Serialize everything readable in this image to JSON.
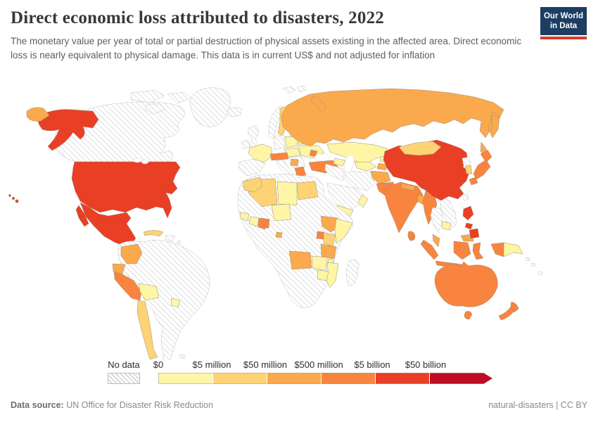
{
  "header": {
    "title": "Direct economic loss attributed to disasters, 2022",
    "subtitle": "The monetary value per year of total or partial destruction of physical assets existing in the affected area. Direct economic loss is nearly equivalent to physical damage. This data is in current US$ and not adjusted for inflation",
    "logo": {
      "line1": "Our World",
      "line2": "in Data",
      "bg": "#1d3d63",
      "accent": "#d93a24"
    }
  },
  "legend": {
    "no_data_label": "No data",
    "tick_labels": [
      "$0",
      "$5 million",
      "$50 million",
      "$500 million",
      "$5 billion",
      "$50 billion"
    ],
    "colors": [
      "#FEF5A5",
      "#FDD374",
      "#FBA94D",
      "#F8843F",
      "#E93F25",
      "#BE0E26"
    ]
  },
  "footer": {
    "source_label": "Data source:",
    "source": " UN Office for Disaster Risk Reduction",
    "note": "natural-disasters | CC BY"
  },
  "map": {
    "no_data_value": "no_data",
    "regions": {
      "canada": "no_data",
      "arctic-islands": "no_data",
      "greenland": "no_data",
      "hispaniola": "no_data",
      "honduras-nicaragua": "no_data",
      "caribbean-specks": "no_data",
      "south-america-base": "no_data",
      "falklands": "no_data",
      "iceland": "no_data",
      "united-kingdom": "no_data",
      "ireland": "no_data",
      "norway": "no_data",
      "iberia": "no_data",
      "germany": "no_data",
      "italy": "no_data",
      "balkans-base": "no_data",
      "iran": "no_data",
      "iraq-syria": "no_data",
      "saudi-arabia": "no_data",
      "north-korea": "no_data",
      "taiwan": "no_data",
      "thailand": "no_data",
      "vietnam-laos": "no_data",
      "africa-base": "no_data",
      "madagascar": "no_data",
      "pacific-islands": "no_data",
      "svalbard": "no_data",
      "jamaica": 0,
      "bolivia": 0,
      "uruguay": 0,
      "france": 0,
      "poland": 0,
      "czech-hungary": 0,
      "belarus": 0,
      "ukraine": 0,
      "baltics": 0,
      "kazakhstan": 0,
      "uzbekistan": 0,
      "kyrgyzstan": 0,
      "caucasus": 0,
      "yemen": 0,
      "oman": 0,
      "cambodia": 0,
      "papua-new-guinea": 0,
      "niger": 0,
      "ivory-coast": 0,
      "guinea": 0,
      "libya": 0,
      "somalia": 0,
      "zambia": 0,
      "mozambique": 0,
      "zimbabwe": 0,
      "malawi": 0,
      "cuba": 1,
      "costa-rica": 1,
      "chile": 1,
      "sweden": 1,
      "finland": 1,
      "mongolia": 1,
      "south-korea": 1,
      "morocco": 1,
      "algeria": 1,
      "egypt": 1,
      "kenya": 1,
      "colombia": 2,
      "ecuador": 2,
      "russia": 2,
      "chukotka": 2,
      "sakhalin": 2,
      "tajikistan": 2,
      "afghanistan": 2,
      "nepal": 2,
      "bangladesh": 2,
      "malaysia": 2,
      "malaysia-borneo": 2,
      "serbia": 2,
      "ethiopia": 2,
      "tanzania": 2,
      "angola": 2,
      "equatorial-guinea": 2,
      "peru": 3,
      "guatemala": 3,
      "panama": 3,
      "austria-switzerland": 3,
      "moldova": 3,
      "greece": 3,
      "turkey": 3,
      "pakistan": 3,
      "india": 3,
      "sri-lanka": 3,
      "myanmar": 3,
      "sumatra": 3,
      "java": 3,
      "borneo": 3,
      "sulawesi": 3,
      "lesser-sunda": 3,
      "papua-west": 3,
      "japan-hokkaido": 3,
      "japan-honshu": 3,
      "japan-kyushu": 3,
      "australia": 3,
      "tasmania": 3,
      "new-zealand-north": 3,
      "new-zealand-south": 3,
      "ghana": 3,
      "togo": 3,
      "uganda": 3,
      "united-states": 4,
      "alaska": 4,
      "hawaii": 4,
      "mexico": 4,
      "baja-california": 4,
      "china": 4,
      "philippines-luzon": 4,
      "philippines-visayas": 4,
      "philippines-mindanao": 4
    }
  }
}
